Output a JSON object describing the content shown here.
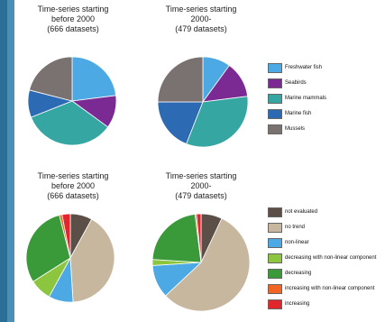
{
  "colors": {
    "page_background": "#2b6f96",
    "panel": "#ffffff",
    "slice_border": "#ffffff"
  },
  "chart_data": [
    {
      "type": "pie",
      "title_lines": [
        "Time-series starting",
        "before 2000",
        "(666 datasets)"
      ],
      "series": [
        {
          "name": "Freshwater fish",
          "value": 23,
          "color": "#4da9e4"
        },
        {
          "name": "Seabirds",
          "value": 12,
          "color": "#7b2a94"
        },
        {
          "name": "Marine mammals",
          "value": 34,
          "color": "#35a6a2"
        },
        {
          "name": "Marine fish",
          "value": 10,
          "color": "#2d6ab4"
        },
        {
          "name": "Mussels",
          "value": 21,
          "color": "#7a7270"
        }
      ]
    },
    {
      "type": "pie",
      "title_lines": [
        "Time-series starting",
        "2000-",
        "(479 datasets)"
      ],
      "series": [
        {
          "name": "Freshwater fish",
          "value": 10,
          "color": "#4da9e4"
        },
        {
          "name": "Seabirds",
          "value": 13,
          "color": "#7b2a94"
        },
        {
          "name": "Marine mammals",
          "value": 33,
          "color": "#35a6a2"
        },
        {
          "name": "Marine fish",
          "value": 19,
          "color": "#2d6ab4"
        },
        {
          "name": "Mussels",
          "value": 25,
          "color": "#7a7270"
        }
      ]
    },
    {
      "type": "pie",
      "title_lines": [
        "Time-series starting",
        "before 2000",
        "(666 datasets)"
      ],
      "series": [
        {
          "name": "not evaluated",
          "value": 8,
          "color": "#5c4f48"
        },
        {
          "name": "no trend",
          "value": 41,
          "color": "#c7b79f"
        },
        {
          "name": "non-linear",
          "value": 9,
          "color": "#4da9e4"
        },
        {
          "name": "decreasing with non-linear component",
          "value": 8,
          "color": "#8cc63f"
        },
        {
          "name": "decreasing",
          "value": 30,
          "color": "#3a9a3a"
        },
        {
          "name": "increasing with non-linear component",
          "value": 1,
          "color": "#f26522"
        },
        {
          "name": "increasing",
          "value": 3,
          "color": "#e1262c"
        }
      ]
    },
    {
      "type": "pie",
      "title_lines": [
        "Time-series starting",
        "2000-",
        "(479 datasets)"
      ],
      "series": [
        {
          "name": "not evaluated",
          "value": 7,
          "color": "#5c4f48"
        },
        {
          "name": "no trend",
          "value": 56,
          "color": "#c7b79f"
        },
        {
          "name": "non-linear",
          "value": 11,
          "color": "#4da9e4"
        },
        {
          "name": "decreasing with non-linear component",
          "value": 2,
          "color": "#8cc63f"
        },
        {
          "name": "decreasing",
          "value": 22,
          "color": "#3a9a3a"
        },
        {
          "name": "increasing with non-linear component",
          "value": 0.5,
          "color": "#f26522"
        },
        {
          "name": "increasing",
          "value": 1.5,
          "color": "#e1262c"
        }
      ]
    }
  ],
  "legends": [
    {
      "items": [
        {
          "label": "Freshwater fish",
          "color": "#4da9e4"
        },
        {
          "label": "Seabirds",
          "color": "#7b2a94"
        },
        {
          "label": "Marine mammals",
          "color": "#35a6a2"
        },
        {
          "label": "Marine fish",
          "color": "#2d6ab4"
        },
        {
          "label": "Mussels",
          "color": "#7a7270"
        }
      ]
    },
    {
      "items": [
        {
          "label": "not evaluated",
          "color": "#5c4f48"
        },
        {
          "label": "no trend",
          "color": "#c7b79f"
        },
        {
          "label": "non-linear",
          "color": "#4da9e4"
        },
        {
          "label": "decreasing with non-linear component",
          "color": "#8cc63f"
        },
        {
          "label": "decreasing",
          "color": "#3a9a3a"
        },
        {
          "label": "increasing with non-linear component",
          "color": "#f26522"
        },
        {
          "label": "increasing",
          "color": "#e1262c"
        }
      ]
    }
  ]
}
